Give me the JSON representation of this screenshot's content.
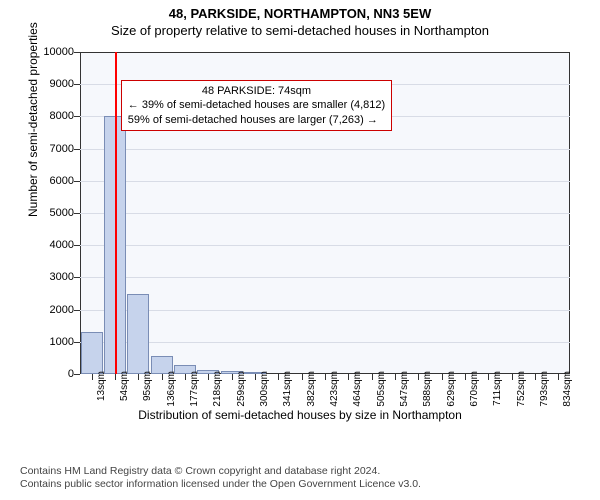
{
  "title_line1": "48, PARKSIDE, NORTHAMPTON, NN3 5EW",
  "title_line2": "Size of property relative to semi-detached houses in Northampton",
  "chart": {
    "type": "histogram",
    "ylabel": "Number of semi-detached properties",
    "xlabel": "Distribution of semi-detached houses by size in Northampton",
    "ylim_max": 10000,
    "ytick_step": 1000,
    "yticks": [
      0,
      1000,
      2000,
      3000,
      4000,
      5000,
      6000,
      7000,
      8000,
      9000,
      10000
    ],
    "x_categories": [
      "13sqm",
      "54sqm",
      "95sqm",
      "136sqm",
      "177sqm",
      "218sqm",
      "259sqm",
      "300sqm",
      "341sqm",
      "382sqm",
      "423sqm",
      "464sqm",
      "505sqm",
      "547sqm",
      "588sqm",
      "629sqm",
      "670sqm",
      "711sqm",
      "752sqm",
      "793sqm",
      "834sqm"
    ],
    "bar_values": [
      1300,
      8000,
      2500,
      550,
      280,
      140,
      90,
      70,
      0,
      0,
      0,
      0,
      0,
      0,
      0,
      0,
      0,
      0,
      0,
      0,
      0
    ],
    "bar_fill": "#c6d3ec",
    "bar_border": "#7a8db5",
    "plot_bg": "#f6f8fc",
    "grid_color": "#d8dce6",
    "axis_color": "#333333",
    "marker_color": "#ff0000",
    "marker_category_index": 1,
    "marker_offset_in_bar": 0.49,
    "y_fontsize": 11,
    "x_fontsize": 10,
    "label_fontsize": 12,
    "title_fontsize": 13
  },
  "annotation": {
    "title": "48 PARKSIDE: 74sqm",
    "line_smaller": "← 39% of semi-detached houses are smaller (4,812)",
    "line_larger": "59% of semi-detached houses are larger (7,263) →",
    "border_color": "#cc0000",
    "bg_color": "#ffffff",
    "fontsize": 11
  },
  "footer": {
    "line1": "Contains HM Land Registry data © Crown copyright and database right 2024.",
    "line2": "Contains public sector information licensed under the Open Government Licence v3.0."
  }
}
